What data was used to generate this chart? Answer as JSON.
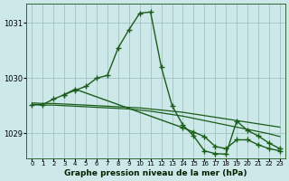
{
  "title": "Graphe pression niveau de la mer (hPa)",
  "bg_color": "#cce8e8",
  "grid_color": "#99bbbb",
  "line_color": "#1a5c1a",
  "xlim": [
    -0.5,
    23.5
  ],
  "ylim": [
    1028.55,
    1031.35
  ],
  "yticks": [
    1029,
    1030,
    1031
  ],
  "xticks": [
    0,
    1,
    2,
    3,
    4,
    5,
    6,
    7,
    8,
    9,
    10,
    11,
    12,
    13,
    14,
    15,
    16,
    17,
    18,
    19,
    20,
    21,
    22,
    23
  ],
  "lines": [
    {
      "x": [
        0,
        1,
        2,
        3,
        4,
        5,
        6,
        7,
        8,
        9,
        10,
        11,
        12,
        13,
        14,
        15,
        16,
        17,
        18,
        19,
        20,
        21,
        22,
        23
      ],
      "y": [
        1029.55,
        1029.54,
        1029.54,
        1029.53,
        1029.52,
        1029.51,
        1029.5,
        1029.49,
        1029.48,
        1029.47,
        1029.46,
        1029.44,
        1029.42,
        1029.4,
        1029.38,
        1029.35,
        1029.32,
        1029.29,
        1029.26,
        1029.23,
        1029.2,
        1029.17,
        1029.14,
        1029.11
      ],
      "marker": null,
      "linestyle": "-",
      "linewidth": 0.9
    },
    {
      "x": [
        0,
        1,
        2,
        3,
        4,
        5,
        6,
        7,
        8,
        9,
        10,
        11,
        12,
        13,
        14,
        15,
        16,
        17,
        18,
        19,
        20,
        21,
        22,
        23
      ],
      "y": [
        1029.52,
        1029.51,
        1029.51,
        1029.5,
        1029.49,
        1029.48,
        1029.47,
        1029.46,
        1029.45,
        1029.44,
        1029.42,
        1029.4,
        1029.37,
        1029.34,
        1029.31,
        1029.27,
        1029.23,
        1029.19,
        1029.15,
        1029.11,
        1029.07,
        1029.03,
        1028.99,
        1028.94
      ],
      "marker": null,
      "linestyle": "-",
      "linewidth": 0.9
    },
    {
      "x": [
        0,
        1,
        2,
        3,
        4,
        5,
        6,
        7,
        8,
        9,
        10,
        11,
        12,
        13,
        14,
        15,
        16,
        17,
        18,
        19,
        20,
        21,
        22,
        23
      ],
      "y": [
        1029.52,
        1029.52,
        1029.62,
        1029.7,
        1029.78,
        1029.85,
        1030.0,
        1030.05,
        1030.55,
        1030.88,
        1031.18,
        1031.2,
        1030.2,
        1029.5,
        1029.15,
        1028.95,
        1028.68,
        1028.63,
        1028.62,
        1029.22,
        1029.05,
        1028.95,
        1028.82,
        1028.72
      ],
      "marker": "+",
      "linestyle": "-",
      "linewidth": 1.0,
      "markersize": 4
    },
    {
      "x": [
        3,
        4,
        14,
        15,
        16,
        17,
        18,
        19,
        20,
        21,
        22,
        23
      ],
      "y": [
        1029.7,
        1029.8,
        1029.1,
        1029.02,
        1028.94,
        1028.76,
        1028.72,
        1028.88,
        1028.88,
        1028.79,
        1028.72,
        1028.68
      ],
      "marker": "+",
      "linestyle": "-",
      "linewidth": 1.0,
      "markersize": 4
    }
  ]
}
